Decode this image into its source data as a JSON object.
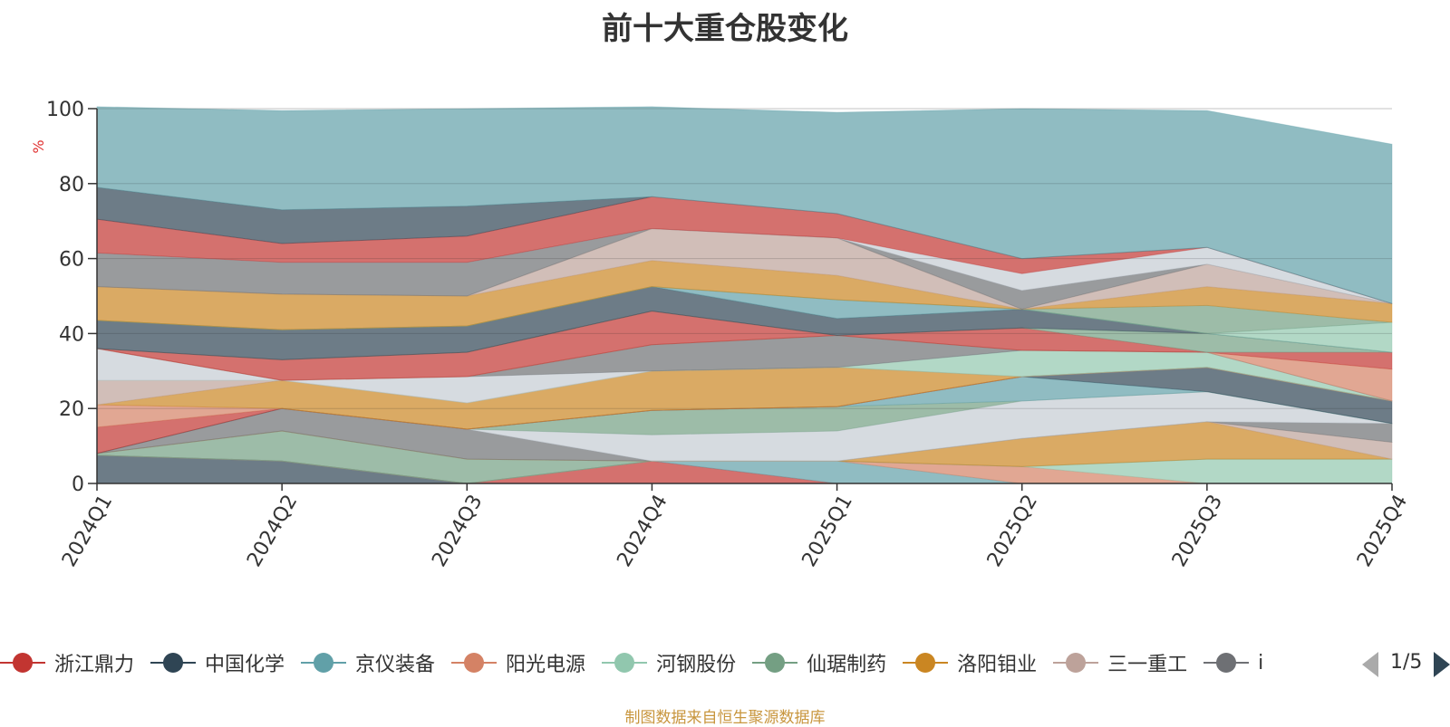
{
  "title": "前十大重仓股变化",
  "source_note": "制图数据来自恒生聚源数据库",
  "pager": {
    "text": "1/5"
  },
  "legend": [
    {
      "name": "浙江鼎力",
      "color": "#c23531"
    },
    {
      "name": "中国化学",
      "color": "#2f4554"
    },
    {
      "name": "京仪装备",
      "color": "#61a0a8"
    },
    {
      "name": "阳光电源",
      "color": "#d48265"
    },
    {
      "name": "河钢股份",
      "color": "#91c7ae"
    },
    {
      "name": "仙琚制药",
      "color": "#749f83"
    },
    {
      "name": "洛阳钼业",
      "color": "#ca8622"
    },
    {
      "name": "三一重工",
      "color": "#bda29a"
    },
    {
      "name": "i",
      "color": "#6e7074"
    }
  ],
  "chart_data": {
    "type": "area",
    "stacked": true,
    "categories": [
      "2024Q1",
      "2024Q2",
      "2024Q3",
      "2024Q4",
      "2025Q1",
      "2025Q2",
      "2025Q3",
      "2025Q4"
    ],
    "ylabel": "%",
    "ylim": [
      0,
      100
    ],
    "yticks": [
      0,
      20,
      40,
      60,
      80,
      100
    ],
    "grid": true,
    "legend_position": "bottom",
    "series": [
      {
        "color": "#2f4554",
        "values": [
          7.5,
          6,
          0,
          0,
          0,
          0,
          0,
          0
        ]
      },
      {
        "color": "#c23531",
        "values": [
          0,
          0,
          0,
          6,
          0,
          0,
          0,
          0
        ]
      },
      {
        "color": "#61a0a8",
        "values": [
          0,
          0,
          0,
          0,
          6,
          0,
          0,
          0
        ]
      },
      {
        "color": "#d48265",
        "values": [
          0,
          0,
          0,
          0,
          0,
          4.5,
          0,
          0
        ]
      },
      {
        "color": "#91c7ae",
        "values": [
          0,
          0,
          0,
          0,
          0,
          0,
          6.5,
          6.5
        ]
      },
      {
        "color": "#749f83",
        "values": [
          0.5,
          8,
          6.5,
          0,
          0,
          0,
          0,
          0
        ]
      },
      {
        "color": "#ca8622",
        "values": [
          0,
          0,
          0,
          0,
          0,
          7.5,
          10,
          0
        ]
      },
      {
        "color": "#bda29a",
        "values": [
          0,
          0,
          0,
          0,
          0,
          0,
          0,
          4.5
        ]
      },
      {
        "color": "#6e7074",
        "values": [
          0,
          6,
          8,
          0,
          0,
          0,
          0,
          5
        ]
      },
      {
        "color": "#c4ccd3",
        "values": [
          0,
          0,
          0,
          7,
          8,
          10,
          8,
          0
        ]
      },
      {
        "color": "#749f83",
        "values": [
          0,
          0,
          0,
          6.5,
          6.5,
          0,
          0,
          0
        ]
      },
      {
        "color": "#61a0a8",
        "values": [
          0,
          0,
          0,
          0,
          0,
          6.5,
          0,
          0
        ]
      },
      {
        "color": "#2f4554",
        "values": [
          0,
          0,
          0,
          0,
          0,
          0,
          6.5,
          6
        ]
      },
      {
        "color": "#c23531",
        "values": [
          7,
          0,
          0,
          0,
          0,
          0,
          0,
          0
        ]
      },
      {
        "color": "#d48265",
        "values": [
          6,
          0,
          0,
          0,
          0,
          0,
          0,
          0
        ]
      },
      {
        "color": "#ca8622",
        "values": [
          0,
          7.5,
          7,
          10.5,
          10.5,
          0,
          0,
          0
        ]
      },
      {
        "color": "#bda29a",
        "values": [
          6.5,
          0,
          0,
          0,
          0,
          0,
          0,
          0
        ]
      },
      {
        "color": "#91c7ae",
        "values": [
          0,
          0,
          0,
          0,
          0,
          7,
          4,
          0
        ]
      },
      {
        "color": "#c4ccd3",
        "values": [
          8.5,
          0,
          7,
          0,
          0,
          0,
          0,
          0
        ]
      },
      {
        "color": "#6e7074",
        "values": [
          0,
          0,
          0,
          7,
          8.5,
          0,
          0,
          0
        ]
      },
      {
        "color": "#d48265",
        "values": [
          0,
          0,
          0,
          0,
          0,
          0,
          0,
          8.5
        ]
      },
      {
        "color": "#c23531",
        "values": [
          0,
          5.5,
          6.5,
          9,
          0,
          6,
          0,
          4.5
        ]
      },
      {
        "color": "#749f83",
        "values": [
          0,
          0,
          0,
          0,
          0,
          0,
          5,
          0
        ]
      },
      {
        "color": "#2f4554",
        "values": [
          7.5,
          8,
          7,
          6.5,
          4.5,
          5,
          0,
          0
        ]
      },
      {
        "color": "#61a0a8",
        "values": [
          0,
          0,
          0,
          0,
          5,
          0,
          0,
          0
        ]
      },
      {
        "color": "#91c7ae",
        "values": [
          0,
          0,
          0,
          0,
          0,
          0,
          0,
          8
        ]
      },
      {
        "color": "#749f83",
        "values": [
          0,
          0,
          0,
          0,
          0,
          0,
          7.5,
          0
        ]
      },
      {
        "color": "#ca8622",
        "values": [
          9,
          9.5,
          8,
          7,
          6.5,
          0,
          5,
          5
        ]
      },
      {
        "color": "#bda29a",
        "values": [
          0,
          0,
          0,
          8.5,
          10,
          0,
          6,
          0
        ]
      },
      {
        "color": "#6e7074",
        "values": [
          9,
          8.5,
          9,
          0,
          0,
          5,
          0,
          0
        ]
      },
      {
        "color": "#c4ccd3",
        "values": [
          0,
          0,
          0,
          0,
          0,
          4.5,
          4.5,
          0
        ]
      },
      {
        "color": "#c23531",
        "values": [
          9,
          5,
          7,
          8.5,
          6.5,
          4,
          0,
          0
        ]
      },
      {
        "color": "#2f4554",
        "values": [
          8.5,
          9,
          8,
          0,
          0,
          0,
          0,
          0
        ]
      },
      {
        "color": "#61a0a8",
        "values": [
          21.5,
          26.5,
          26,
          24,
          27,
          40,
          36.5,
          42.5
        ]
      }
    ]
  }
}
